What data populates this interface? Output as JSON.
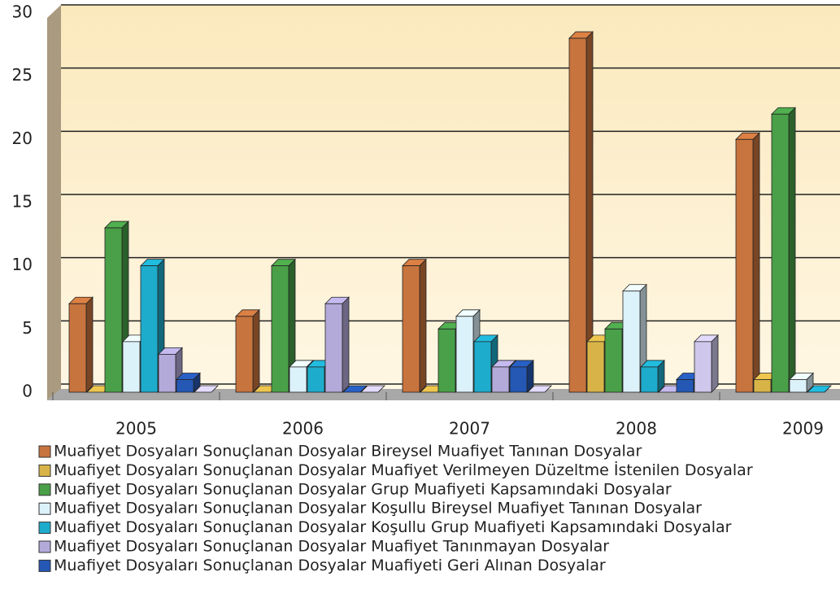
{
  "chart_data": {
    "type": "bar",
    "categories": [
      "2005",
      "2006",
      "2007",
      "2008",
      "2009"
    ],
    "series": [
      {
        "name": "Muafiyet Dosyaları Sonuçlanan Dosyalar Bireysel Muafiyet Tanınan Dosyalar",
        "color": "#c8743e",
        "values": [
          7,
          6,
          10,
          28,
          20
        ]
      },
      {
        "name": "Muafiyet Dosyaları Sonuçlanan Dosyalar Muafiyet Verilmeyen Düzeltme İstenilen Dosyalar",
        "color": "#d8b448",
        "values": [
          0,
          0,
          0,
          4,
          1
        ]
      },
      {
        "name": "Muafiyet Dosyaları Sonuçlanan Dosyalar Grup Muafiyeti Kapsamındaki Dosyalar",
        "color": "#4aa048",
        "values": [
          13,
          10,
          5,
          5,
          22
        ]
      },
      {
        "name": "Muafiyet Dosyaları Sonuçlanan Dosyalar Koşullu Bireysel Muafiyet Tanınan Dosyalar",
        "color": "#dcf2fa",
        "values": [
          4,
          2,
          6,
          8,
          1
        ]
      },
      {
        "name": "Muafiyet Dosyaları Sonuçlanan Dosyalar Koşullu Grup Muafiyeti Kapsamındaki Dosyalar",
        "color": "#1eaccc",
        "values": [
          10,
          2,
          4,
          2,
          0
        ]
      },
      {
        "name": "Muafiyet Dosyaları Sonuçlanan Dosyalar Muafiyet Tanınmayan Dosyalar",
        "color": "#b4aada",
        "values": [
          3,
          7,
          2,
          0,
          null
        ]
      },
      {
        "name": "Muafiyet Dosyaları Sonuçlanan Dosyalar Muafiyeti Geri Alınan Dosyalar",
        "color": "#2458b4",
        "values": [
          1,
          0,
          2,
          1,
          null
        ]
      },
      {
        "name": null,
        "color": "#cfc8ec",
        "values": [
          0,
          0,
          0,
          4,
          null
        ]
      }
    ],
    "ylim": [
      0,
      30
    ],
    "yticks": [
      0,
      5,
      10,
      15,
      20,
      25,
      30
    ],
    "grid": true
  }
}
